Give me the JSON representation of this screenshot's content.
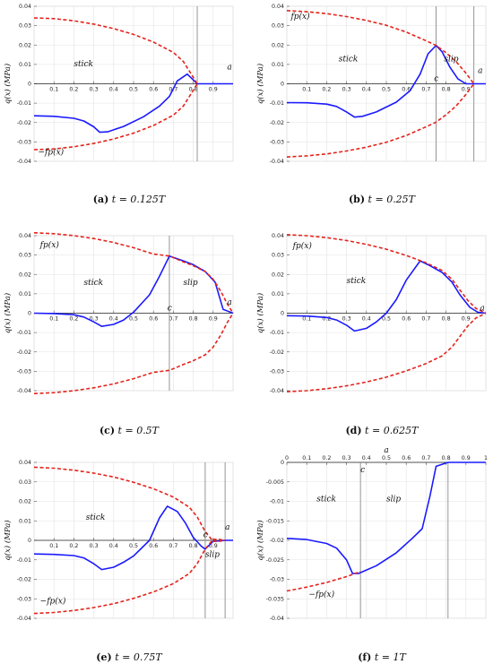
{
  "chart_data": [
    {
      "type": "line",
      "panel": "a",
      "caption_label": "(a)",
      "caption_text": "t = 0.125T",
      "ylabel": "q(x)  (MPa)",
      "xlim": [
        0,
        1
      ],
      "ylim": [
        -0.04,
        0.04
      ],
      "x_axis_position": "zero",
      "x_ticks": [
        "0.1",
        "0.2",
        "0.3",
        "0.4",
        "0.5",
        "0.6",
        "0.7",
        "0.8",
        "0.9"
      ],
      "y_ticks": [
        "0.04",
        "0.03",
        "0.02",
        "0.01",
        "0",
        "-0.01",
        "-0.02",
        "-0.03",
        "-0.04"
      ],
      "grid": true,
      "vlines": [
        0.82
      ],
      "series": [
        {
          "role": "q",
          "color": "#1a1aff",
          "style": "solid",
          "x": [
            0,
            0.1,
            0.2,
            0.25,
            0.3,
            0.33,
            0.37,
            0.45,
            0.55,
            0.63,
            0.68,
            0.72,
            0.77,
            0.8,
            0.82,
            1.0
          ],
          "y": [
            -0.0165,
            -0.0168,
            -0.0178,
            -0.0192,
            -0.0222,
            -0.025,
            -0.0248,
            -0.022,
            -0.017,
            -0.0115,
            -0.0065,
            0.0015,
            0.005,
            0.002,
            0,
            0
          ]
        },
        {
          "role": "upper",
          "color": "#e3231c",
          "style": "dashed",
          "x": [
            0,
            0.1,
            0.2,
            0.3,
            0.4,
            0.5,
            0.6,
            0.7,
            0.75,
            0.79,
            0.82
          ],
          "y": [
            0.034,
            0.0336,
            0.0325,
            0.0308,
            0.0285,
            0.0255,
            0.0215,
            0.0162,
            0.0115,
            0.005,
            0
          ]
        },
        {
          "role": "lower",
          "color": "#e3231c",
          "style": "dashed",
          "x": [
            0,
            0.1,
            0.2,
            0.3,
            0.4,
            0.5,
            0.6,
            0.7,
            0.75,
            0.79,
            0.82
          ],
          "y": [
            -0.034,
            -0.0336,
            -0.0325,
            -0.0308,
            -0.0285,
            -0.0255,
            -0.0215,
            -0.0162,
            -0.0115,
            -0.005,
            0
          ]
        }
      ],
      "annotations": [
        {
          "text": "stick",
          "x": 0.2,
          "y": 0.009
        },
        {
          "text": "−fp(x)",
          "x": 0.02,
          "y": -0.0365
        },
        {
          "text": "a",
          "x": 0.97,
          "y": 0.0075
        }
      ]
    },
    {
      "type": "line",
      "panel": "b",
      "caption_label": "(b)",
      "caption_text": "t = 0.25T",
      "ylabel": "q(x)  (MPa)",
      "xlim": [
        0,
        1
      ],
      "ylim": [
        -0.04,
        0.04
      ],
      "x_axis_position": "zero",
      "x_ticks": [
        "0.1",
        "0.2",
        "0.3",
        "0.4",
        "0.5",
        "0.6",
        "0.7",
        "0.8",
        "0.9"
      ],
      "y_ticks": [
        "0.04",
        "0.03",
        "0.02",
        "0.01",
        "0",
        "-0.01",
        "-0.02",
        "-0.03",
        "-0.04"
      ],
      "grid": true,
      "vlines": [
        0.75,
        0.94
      ],
      "series": [
        {
          "role": "q",
          "color": "#1a1aff",
          "style": "solid",
          "x": [
            0,
            0.1,
            0.2,
            0.25,
            0.3,
            0.34,
            0.38,
            0.45,
            0.55,
            0.62,
            0.67,
            0.71,
            0.75,
            0.78,
            0.82,
            0.86,
            0.9,
            0.94,
            1.0
          ],
          "y": [
            -0.0097,
            -0.0098,
            -0.0105,
            -0.0117,
            -0.0145,
            -0.0172,
            -0.0168,
            -0.0145,
            -0.0095,
            -0.0035,
            0.005,
            0.0155,
            0.0198,
            0.0165,
            0.0085,
            0.0025,
            0,
            0,
            0
          ]
        },
        {
          "role": "upper",
          "color": "#e3231c",
          "style": "dashed",
          "x": [
            0,
            0.1,
            0.2,
            0.3,
            0.4,
            0.5,
            0.6,
            0.7,
            0.75,
            0.8,
            0.85,
            0.9,
            0.94
          ],
          "y": [
            0.0378,
            0.0372,
            0.0362,
            0.0347,
            0.0327,
            0.0302,
            0.0267,
            0.0222,
            0.0198,
            0.016,
            0.0115,
            0.0055,
            0
          ]
        },
        {
          "role": "lower",
          "color": "#e3231c",
          "style": "dashed",
          "x": [
            0,
            0.1,
            0.2,
            0.3,
            0.4,
            0.5,
            0.6,
            0.7,
            0.75,
            0.8,
            0.85,
            0.9,
            0.94
          ],
          "y": [
            -0.0378,
            -0.0372,
            -0.0362,
            -0.0347,
            -0.0327,
            -0.0302,
            -0.0267,
            -0.0222,
            -0.0198,
            -0.016,
            -0.0115,
            -0.0055,
            0
          ]
        }
      ],
      "annotations": [
        {
          "text": "fp(x)",
          "x": 0.02,
          "y": 0.0335
        },
        {
          "text": "stick",
          "x": 0.26,
          "y": 0.0115
        },
        {
          "text": "slip",
          "x": 0.79,
          "y": 0.0115
        },
        {
          "text": "c",
          "x": 0.74,
          "y": 0.0015
        },
        {
          "text": "a",
          "x": 0.96,
          "y": 0.0055
        }
      ]
    },
    {
      "type": "line",
      "panel": "c",
      "caption_label": "(c)",
      "caption_text": "t = 0.5T",
      "ylabel": "q(x)  (MPa)",
      "xlim": [
        0,
        1
      ],
      "ylim": [
        -0.04,
        0.04
      ],
      "x_axis_position": "zero",
      "x_ticks": [
        "0.1",
        "0.2",
        "0.3",
        "0.4",
        "0.5",
        "0.6",
        "0.7",
        "0.8",
        "0.9"
      ],
      "y_ticks": [
        "0.04",
        "0.03",
        "0.02",
        "0.01",
        "0",
        "-0.01",
        "-0.02",
        "-0.03",
        "-0.04"
      ],
      "grid": true,
      "vlines": [
        0.68
      ],
      "series": [
        {
          "role": "q",
          "color": "#1a1aff",
          "style": "solid",
          "x": [
            0,
            0.1,
            0.2,
            0.25,
            0.3,
            0.34,
            0.4,
            0.45,
            0.5,
            0.58,
            0.63,
            0.68,
            0.75,
            0.8,
            0.86,
            0.91,
            0.95,
            1.0
          ],
          "y": [
            0,
            -0.0002,
            -0.0008,
            -0.002,
            -0.0045,
            -0.0068,
            -0.0058,
            -0.0035,
            0.0005,
            0.0095,
            0.019,
            0.0295,
            0.027,
            0.025,
            0.0215,
            0.016,
            0.002,
            0
          ]
        },
        {
          "role": "upper",
          "color": "#e3231c",
          "style": "dashed",
          "x": [
            0,
            0.1,
            0.2,
            0.3,
            0.4,
            0.5,
            0.6,
            0.68,
            0.75,
            0.8,
            0.86,
            0.9,
            0.94,
            0.97,
            1.0
          ],
          "y": [
            0.0415,
            0.041,
            0.04,
            0.0385,
            0.0365,
            0.0338,
            0.0305,
            0.0295,
            0.0265,
            0.0245,
            0.0215,
            0.0175,
            0.011,
            0.005,
            0
          ]
        },
        {
          "role": "lower",
          "color": "#e3231c",
          "style": "dashed",
          "x": [
            0,
            0.1,
            0.2,
            0.3,
            0.4,
            0.5,
            0.6,
            0.68,
            0.75,
            0.8,
            0.86,
            0.9,
            0.94,
            0.97,
            1.0
          ],
          "y": [
            -0.0415,
            -0.041,
            -0.04,
            -0.0385,
            -0.0365,
            -0.0338,
            -0.0305,
            -0.0295,
            -0.0265,
            -0.0245,
            -0.0215,
            -0.0175,
            -0.011,
            -0.005,
            0
          ]
        }
      ],
      "annotations": [
        {
          "text": "fp(x)",
          "x": 0.03,
          "y": 0.034
        },
        {
          "text": "stick",
          "x": 0.25,
          "y": 0.0145
        },
        {
          "text": "slip",
          "x": 0.75,
          "y": 0.0145
        },
        {
          "text": "c",
          "x": 0.67,
          "y": 0.0015
        },
        {
          "text": "a",
          "x": 0.97,
          "y": 0.0045
        }
      ]
    },
    {
      "type": "line",
      "panel": "d",
      "caption_label": "(d)",
      "caption_text": "t = 0.625T",
      "ylabel": "q(x)  (MPa)",
      "xlim": [
        0,
        1
      ],
      "ylim": [
        -0.04,
        0.04
      ],
      "x_axis_position": "zero",
      "x_ticks": [
        "0.1",
        "0.2",
        "0.3",
        "0.4",
        "0.5",
        "0.6",
        "0.7",
        "0.8",
        "0.9"
      ],
      "y_ticks": [
        "0.04",
        "0.03",
        "0.02",
        "0.01",
        "0",
        "-0.01",
        "-0.02",
        "-0.03",
        "-0.04"
      ],
      "grid": true,
      "vlines": [],
      "series": [
        {
          "role": "q",
          "color": "#1a1aff",
          "style": "solid",
          "x": [
            0,
            0.1,
            0.2,
            0.25,
            0.3,
            0.34,
            0.4,
            0.45,
            0.5,
            0.55,
            0.6,
            0.67,
            0.72,
            0.78,
            0.83,
            0.87,
            0.92,
            0.96,
            1.0
          ],
          "y": [
            -0.0013,
            -0.0015,
            -0.0022,
            -0.0035,
            -0.0062,
            -0.0092,
            -0.0078,
            -0.0045,
            0,
            0.007,
            0.017,
            0.027,
            0.0245,
            0.021,
            0.016,
            0.0095,
            0.003,
            0.0005,
            0
          ]
        },
        {
          "role": "upper",
          "color": "#e3231c",
          "style": "dashed",
          "x": [
            0,
            0.1,
            0.2,
            0.3,
            0.4,
            0.5,
            0.6,
            0.7,
            0.78,
            0.83,
            0.87,
            0.91,
            0.95,
            0.98,
            1.0
          ],
          "y": [
            0.0405,
            0.04,
            0.039,
            0.0375,
            0.0355,
            0.033,
            0.0298,
            0.026,
            0.022,
            0.0175,
            0.012,
            0.0065,
            0.0025,
            0.001,
            0
          ]
        },
        {
          "role": "lower",
          "color": "#e3231c",
          "style": "dashed",
          "x": [
            0,
            0.1,
            0.2,
            0.3,
            0.4,
            0.5,
            0.6,
            0.7,
            0.78,
            0.83,
            0.87,
            0.91,
            0.95,
            0.98,
            1.0
          ],
          "y": [
            -0.0405,
            -0.04,
            -0.039,
            -0.0375,
            -0.0355,
            -0.033,
            -0.0298,
            -0.026,
            -0.022,
            -0.0175,
            -0.012,
            -0.0065,
            -0.0025,
            -0.001,
            0
          ]
        }
      ],
      "annotations": [
        {
          "text": "fp(x)",
          "x": 0.03,
          "y": 0.0335
        },
        {
          "text": "stick",
          "x": 0.3,
          "y": 0.0155
        },
        {
          "text": "a",
          "x": 0.97,
          "y": 0.0015
        }
      ]
    },
    {
      "type": "line",
      "panel": "e",
      "caption_label": "(e)",
      "caption_text": "t = 0.75T",
      "ylabel": "q(x)  (MPa)",
      "xlim": [
        0,
        1
      ],
      "ylim": [
        -0.04,
        0.04
      ],
      "x_axis_position": "zero",
      "x_ticks": [
        "0.1",
        "0.2",
        "0.3",
        "0.4",
        "0.5",
        "0.6",
        "0.7",
        "0.8",
        "0.9"
      ],
      "y_ticks": [
        "0.04",
        "0.03",
        "0.02",
        "0.01",
        "0",
        "-0.01",
        "-0.02",
        "-0.03",
        "-0.04"
      ],
      "grid": true,
      "vlines": [
        0.86,
        0.96
      ],
      "series": [
        {
          "role": "q",
          "color": "#1a1aff",
          "style": "solid",
          "x": [
            0,
            0.1,
            0.2,
            0.25,
            0.3,
            0.34,
            0.4,
            0.45,
            0.5,
            0.58,
            0.63,
            0.67,
            0.72,
            0.76,
            0.8,
            0.84,
            0.86,
            0.9,
            0.96,
            1.0
          ],
          "y": [
            -0.007,
            -0.0072,
            -0.0078,
            -0.009,
            -0.012,
            -0.015,
            -0.0138,
            -0.0112,
            -0.008,
            0,
            0.0115,
            0.0175,
            0.0148,
            0.009,
            0.0015,
            -0.003,
            -0.0045,
            -0.0005,
            0,
            0
          ]
        },
        {
          "role": "upper",
          "color": "#e3231c",
          "style": "dashed",
          "x": [
            0,
            0.1,
            0.2,
            0.3,
            0.4,
            0.5,
            0.6,
            0.7,
            0.78,
            0.82,
            0.86,
            0.9,
            0.93,
            0.96
          ],
          "y": [
            0.0375,
            0.037,
            0.036,
            0.0345,
            0.0325,
            0.0298,
            0.0265,
            0.0222,
            0.017,
            0.012,
            0.0045,
            -0.0005,
            -0.0005,
            0
          ]
        },
        {
          "role": "lower",
          "color": "#e3231c",
          "style": "dashed",
          "x": [
            0,
            0.1,
            0.2,
            0.3,
            0.4,
            0.5,
            0.6,
            0.7,
            0.78,
            0.82,
            0.86,
            0.9,
            0.93,
            0.96
          ],
          "y": [
            -0.0375,
            -0.037,
            -0.036,
            -0.0345,
            -0.0325,
            -0.0298,
            -0.0265,
            -0.0222,
            -0.017,
            -0.012,
            -0.0045,
            0.0005,
            0.0005,
            0
          ]
        }
      ],
      "annotations": [
        {
          "text": "stick",
          "x": 0.26,
          "y": 0.0105
        },
        {
          "text": "c",
          "x": 0.85,
          "y": 0.0015
        },
        {
          "text": "a",
          "x": 0.96,
          "y": 0.0055
        },
        {
          "text": "slip",
          "x": 0.86,
          "y": -0.0085
        },
        {
          "text": "−fp(x)",
          "x": 0.03,
          "y": -0.0325
        }
      ]
    },
    {
      "type": "line",
      "panel": "f",
      "caption_label": "(f)",
      "caption_text": "t = 1T",
      "ylabel": "q(x)  (MPa)",
      "xlim": [
        0,
        1
      ],
      "ylim": [
        -0.04,
        0
      ],
      "x_axis_position": "top",
      "top_label": "a",
      "x_ticks": [
        "0",
        "0.1",
        "0.2",
        "0.3",
        "0.4",
        "0.5",
        "0.6",
        "0.7",
        "0.8",
        "0.9",
        "1"
      ],
      "y_ticks": [
        "0",
        "-0.005",
        "-0.01",
        "-0.015",
        "-0.02",
        "-0.025",
        "-0.03",
        "-0.035",
        "-0.04"
      ],
      "grid": true,
      "vlines": [
        0.37,
        0.81
      ],
      "series": [
        {
          "role": "q",
          "color": "#1a1aff",
          "style": "solid",
          "x": [
            0,
            0.1,
            0.2,
            0.25,
            0.3,
            0.33,
            0.36,
            0.45,
            0.55,
            0.63,
            0.68,
            0.72,
            0.75,
            0.81,
            1.0
          ],
          "y": [
            -0.0195,
            -0.0198,
            -0.0208,
            -0.022,
            -0.025,
            -0.0285,
            -0.0285,
            -0.0265,
            -0.0232,
            -0.0195,
            -0.017,
            -0.0085,
            -0.001,
            0,
            0
          ]
        },
        {
          "role": "lower",
          "color": "#e3231c",
          "style": "dashed",
          "x": [
            0,
            0.1,
            0.2,
            0.3,
            0.37
          ],
          "y": [
            -0.033,
            -0.032,
            -0.0308,
            -0.0293,
            -0.028
          ]
        }
      ],
      "annotations": [
        {
          "text": "c",
          "x": 0.37,
          "y": -0.0025
        },
        {
          "text": "stick",
          "x": 0.15,
          "y": -0.01
        },
        {
          "text": "slip",
          "x": 0.5,
          "y": -0.01
        },
        {
          "text": "−fp(x)",
          "x": 0.11,
          "y": -0.0345
        }
      ]
    }
  ]
}
